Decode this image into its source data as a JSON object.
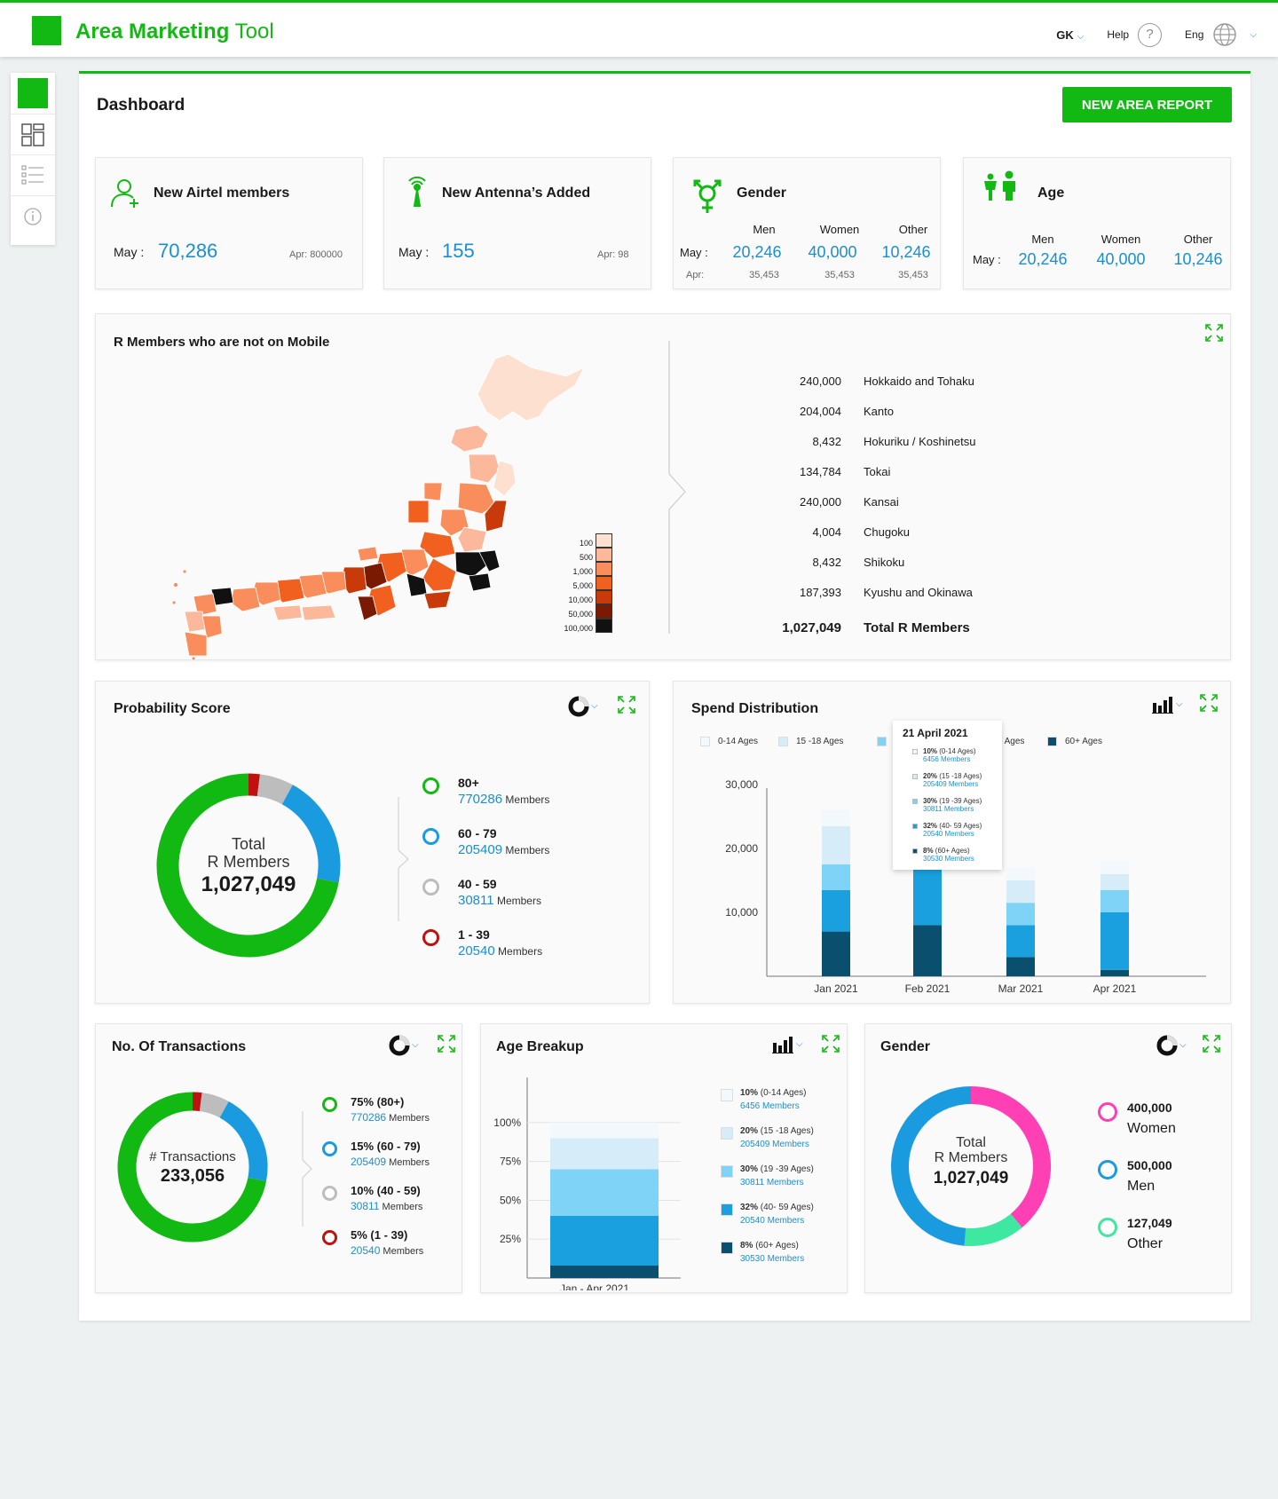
{
  "app": {
    "title_main": "Area Marketing",
    "title_rest": " Tool",
    "user": "GK",
    "help": "Help",
    "lang": "Eng"
  },
  "page": {
    "title": "Dashboard",
    "new_report": "NEW AREA REPORT"
  },
  "cards": {
    "airtel": {
      "title": "New Airtel members",
      "may_label": "May :",
      "value": "70,286",
      "apr": "Apr:  800000"
    },
    "antenna": {
      "title": "New Antenna’s Added",
      "may_label": "May :",
      "value": "155",
      "apr": "Apr:  98"
    },
    "gender": {
      "title": "Gender",
      "may_label": "May :",
      "apr_label": "Apr:",
      "cols": [
        {
          "h": "Men",
          "v": "20,246",
          "a": "35,453"
        },
        {
          "h": "Women",
          "v": "40,000",
          "a": "35,453"
        },
        {
          "h": "Other",
          "v": "10,246",
          "a": "35,453"
        }
      ]
    },
    "age": {
      "title": "Age",
      "may_label": "May :",
      "cols": [
        {
          "h": "Men",
          "v": "20,246"
        },
        {
          "h": "Women",
          "v": "40,000"
        },
        {
          "h": "Other",
          "v": "10,246"
        }
      ]
    }
  },
  "map": {
    "title": "R Members who are not on Mobile",
    "scale": [
      "100",
      "500",
      "1,000",
      "5,000",
      "10,000",
      "50,000",
      "100,000"
    ],
    "scale_colors": [
      "#fde0d0",
      "#fbb89a",
      "#f98d5c",
      "#f2601f",
      "#c83a0a",
      "#7a1a02",
      "#111111"
    ],
    "regions": [
      {
        "value": "240,000",
        "name": "Hokkaido and Tohaku"
      },
      {
        "value": "204,004",
        "name": "Kanto"
      },
      {
        "value": "8,432",
        "name": "Hokuriku / Koshinetsu"
      },
      {
        "value": "134,784",
        "name": "Tokai"
      },
      {
        "value": "240,000",
        "name": "Kansai"
      },
      {
        "value": "4,004",
        "name": "Chugoku"
      },
      {
        "value": "8,432",
        "name": "Shikoku"
      },
      {
        "value": "187,393",
        "name": "Kyushu and Okinawa"
      }
    ],
    "total": {
      "value": "1,027,049",
      "name": "Total R Members"
    }
  },
  "probability": {
    "title": "Probability Score",
    "center": {
      "l1": "Total",
      "l2": "R Members",
      "v": "1,027,049"
    },
    "items": [
      {
        "range": "80+",
        "value": "770286",
        "suffix": " Members",
        "color": "#12b912"
      },
      {
        "range": "60 - 79",
        "value": "205409",
        "suffix": " Members",
        "color": "#1a9be0"
      },
      {
        "range": "40 - 59",
        "value": "30811",
        "suffix": " Members",
        "color": "#bdbdbd"
      },
      {
        "range": "1 - 39",
        "value": "20540",
        "suffix": " Members",
        "color": "#c01010"
      }
    ]
  },
  "spend": {
    "title": "Spend Distribution",
    "legend": [
      {
        "label": "0-14 Ages",
        "color": "#f2f8fc"
      },
      {
        "label": "15 -18 Ages",
        "color": "#d6ecf9"
      },
      {
        "label": "19 -39 Ages",
        "color": "#7fd3f7"
      },
      {
        "label": "40- 59 Ages",
        "color": "#1aa0de"
      },
      {
        "label": "60+ Ages",
        "color": "#0a4f6e"
      }
    ],
    "tooltip": {
      "title": "21 April 2021",
      "rows": [
        {
          "pct": "10%",
          "grp": " (0-14 Ages)",
          "mem": "6456 Members",
          "color": "#f2f8fc"
        },
        {
          "pct": "20%",
          "grp": " (15 -18 Ages)",
          "mem": "205409 Members",
          "color": "#d6ecf9"
        },
        {
          "pct": "30%",
          "grp": " (19 -39 Ages)",
          "mem": "30811 Members",
          "color": "#7fd3f7"
        },
        {
          "pct": "32%",
          "grp": " (40- 59 Ages)",
          "mem": "20540 Members",
          "color": "#1aa0de"
        },
        {
          "pct": "8%",
          "grp": " (60+ Ages)",
          "mem": "30530 Members",
          "color": "#0a4f6e"
        }
      ]
    }
  },
  "chart_data": [
    {
      "type": "bar",
      "title": "Spend Distribution",
      "categories": [
        "Jan 2021",
        "Feb 2021",
        "Mar 2021",
        "Apr 2021"
      ],
      "y_ticks": [
        "10,000",
        "20,000",
        "30,000"
      ],
      "ylim": [
        0,
        35000
      ],
      "series": [
        {
          "name": "60+ Ages",
          "values": [
            7000,
            8000,
            3000,
            1000
          ]
        },
        {
          "name": "40- 59 Ages",
          "values": [
            6500,
            10000,
            5000,
            9000
          ]
        },
        {
          "name": "19 -39 Ages",
          "values": [
            4000,
            10000,
            3500,
            3500
          ]
        },
        {
          "name": "15 -18 Ages",
          "values": [
            6000,
            3500,
            3500,
            2500
          ]
        },
        {
          "name": "0-14 Ages",
          "values": [
            2500,
            3500,
            2000,
            2000
          ]
        }
      ]
    },
    {
      "type": "bar",
      "title": "Age Breakup",
      "categories": [
        "Jan - Apr 2021"
      ],
      "y_ticks": [
        "25%",
        "50%",
        "75%",
        "100%"
      ],
      "ylim": [
        0,
        100
      ],
      "series": [
        {
          "name": "60+ Ages",
          "values": [
            8
          ]
        },
        {
          "name": "40- 59 Ages",
          "values": [
            32
          ]
        },
        {
          "name": "19 -39 Ages",
          "values": [
            30
          ]
        },
        {
          "name": "15 -18 Ages",
          "values": [
            20
          ]
        },
        {
          "name": "0-14 Ages",
          "values": [
            10
          ]
        }
      ]
    }
  ],
  "transactions": {
    "title": "No. Of Transactions",
    "center": {
      "l1": "# Transactions",
      "v": "233,056"
    },
    "items": [
      {
        "range": "75% (80+)",
        "value": "770286",
        "suffix": " Members",
        "color": "#12b912"
      },
      {
        "range": "15% (60 - 79)",
        "value": "205409",
        "suffix": " Members",
        "color": "#1a9be0"
      },
      {
        "range": "10% (40 - 59)",
        "value": "30811",
        "suffix": " Members",
        "color": "#bdbdbd"
      },
      {
        "range": "5% (1 - 39)",
        "value": "20540",
        "suffix": " Members",
        "color": "#c01010"
      }
    ]
  },
  "age_breakup": {
    "title": "Age Breakup",
    "legend": [
      {
        "pct": "10%",
        "grp": " (0-14 Ages)",
        "mem": "6456 Members",
        "color": "#f2f8fc"
      },
      {
        "pct": "20%",
        "grp": " (15 -18 Ages)",
        "mem": "205409 Members",
        "color": "#d6ecf9"
      },
      {
        "pct": "30%",
        "grp": " (19 -39 Ages)",
        "mem": "30811 Members",
        "color": "#7fd3f7"
      },
      {
        "pct": "32%",
        "grp": " (40- 59 Ages)",
        "mem": "20540 Members",
        "color": "#1aa0de"
      },
      {
        "pct": "8%",
        "grp": " (60+ Ages)",
        "mem": "30530 Members",
        "color": "#0a4f6e"
      }
    ]
  },
  "gender_chart": {
    "title": "Gender",
    "center": {
      "l1": "Total",
      "l2": "R Members",
      "v": "1,027,049"
    },
    "items": [
      {
        "value": "400,000",
        "label": "Women",
        "color": "#ff3fb4"
      },
      {
        "value": "500,000",
        "label": "Men",
        "color": "#1a9be0"
      },
      {
        "value": "127,049",
        "label": "Other",
        "color": "#3fe8a0"
      }
    ]
  },
  "icons": {
    "expand": "expand-icon",
    "donut_type": "donut-chart-type-icon",
    "bar_type": "bar-chart-type-icon"
  }
}
